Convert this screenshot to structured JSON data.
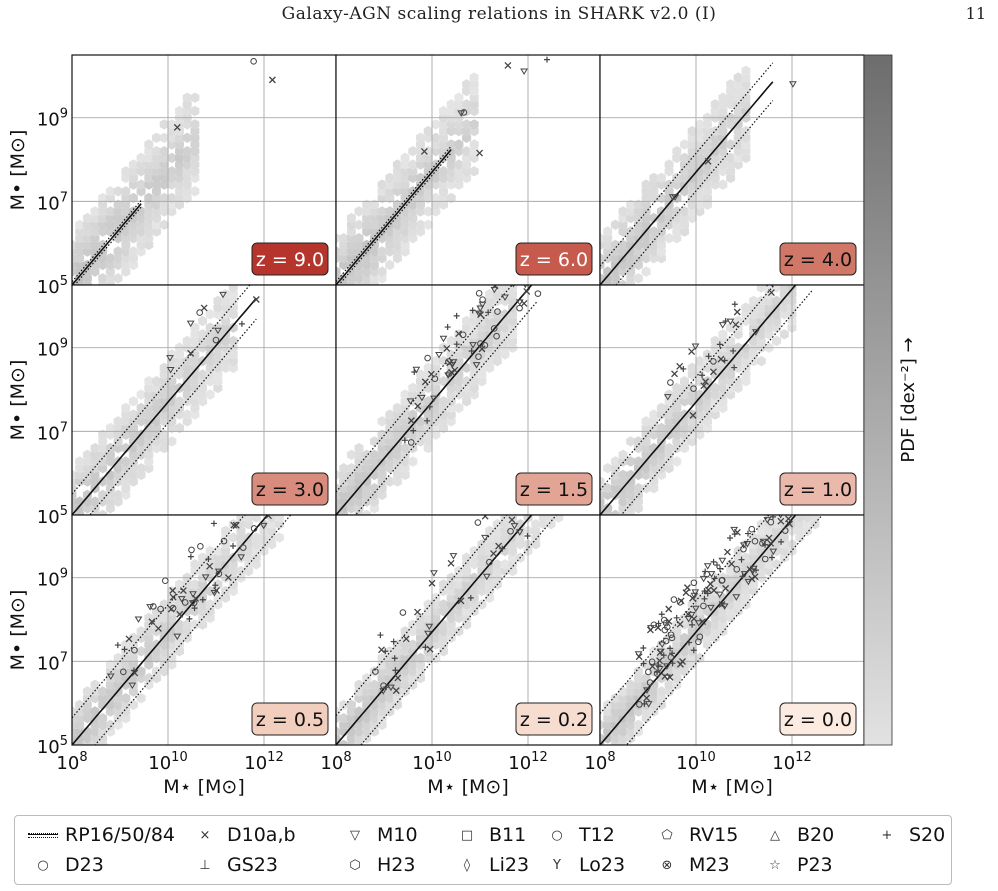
{
  "header": {
    "title": "Galaxy-AGN scaling relations in SHARK v2.0 (I)",
    "page_number": "11"
  },
  "axes": {
    "ylabel": "M• [M⊙]",
    "xlabel": "M⋆ [M⊙]",
    "y_ticks": [
      "10^5",
      "10^7",
      "10^9"
    ],
    "x_ticks": [
      "10^8",
      "10^10",
      "10^12"
    ],
    "y_range": [
      5,
      10.5
    ],
    "x_range": [
      8,
      13.5
    ]
  },
  "colorbar": {
    "label": "PDF [dex⁻²] →"
  },
  "panels": [
    {
      "z_label": "z = 9.0",
      "box_color": "#b5352c",
      "text_color": "#ffffff"
    },
    {
      "z_label": "z = 6.0",
      "box_color": "#c65a4c",
      "text_color": "#ffffff"
    },
    {
      "z_label": "z = 4.0",
      "box_color": "#d07767",
      "text_color": "#111111"
    },
    {
      "z_label": "z = 3.0",
      "box_color": "#d98c7d",
      "text_color": "#111111"
    },
    {
      "z_label": "z = 1.5",
      "box_color": "#e2a595",
      "text_color": "#111111"
    },
    {
      "z_label": "z = 1.0",
      "box_color": "#eab9ab",
      "text_color": "#111111"
    },
    {
      "z_label": "z = 0.5",
      "box_color": "#f2cebf",
      "text_color": "#111111"
    },
    {
      "z_label": "z = 0.2",
      "box_color": "#f6ddd0",
      "text_color": "#111111"
    },
    {
      "z_label": "z = 0.0",
      "box_color": "#fbebe0",
      "text_color": "#111111"
    }
  ],
  "legend": [
    {
      "label": "RP16/50/84",
      "symbol": "lines"
    },
    {
      "label": "D10a,b",
      "symbol": "×"
    },
    {
      "label": "M10",
      "symbol": "▽"
    },
    {
      "label": "B11",
      "symbol": "□"
    },
    {
      "label": "T12",
      "symbol": "○"
    },
    {
      "label": "RV15",
      "symbol": "⬠"
    },
    {
      "label": "B20",
      "symbol": "△"
    },
    {
      "label": "S20",
      "symbol": "+"
    },
    {
      "label": "D23",
      "symbol": "○"
    },
    {
      "label": "GS23",
      "symbol": "⊥"
    },
    {
      "label": "H23",
      "symbol": "⬡"
    },
    {
      "label": "Li23",
      "symbol": "◊"
    },
    {
      "label": "Lo23",
      "symbol": "Y"
    },
    {
      "label": "M23",
      "symbol": "⊗"
    },
    {
      "label": "P23",
      "symbol": "☆"
    }
  ]
}
